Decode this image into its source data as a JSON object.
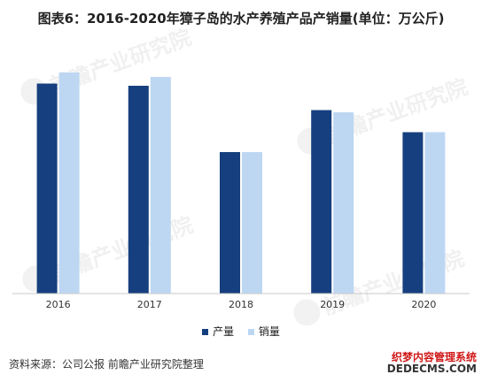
{
  "title": "图表6：2016-2020年獐子岛的水产养殖产品产销量(单位：万公斤)",
  "legend": {
    "production": "产量",
    "sales": "销量"
  },
  "source": "资料来源：公司公报 前瞻产业研究院整理",
  "watermark_text": "前瞻产业研究院",
  "site_watermark": {
    "line1": "织梦内容管理系统",
    "line2": "DEDECMS.COM"
  },
  "colors": {
    "production": "#153f7e",
    "sales": "#bdd7f3",
    "axis": "#c8c8c8",
    "watermark_red": "#d01818"
  },
  "chart_data": {
    "type": "bar",
    "categories": [
      "2016",
      "2017",
      "2018",
      "2019",
      "2020"
    ],
    "series": [
      {
        "name": "产量",
        "values": [
          9.5,
          9.4,
          6.4,
          8.3,
          7.3
        ]
      },
      {
        "name": "销量",
        "values": [
          10.0,
          9.8,
          6.4,
          8.2,
          7.3
        ]
      }
    ],
    "ylim": [
      0,
      12
    ],
    "grid": false,
    "legend_position": "bottom"
  }
}
